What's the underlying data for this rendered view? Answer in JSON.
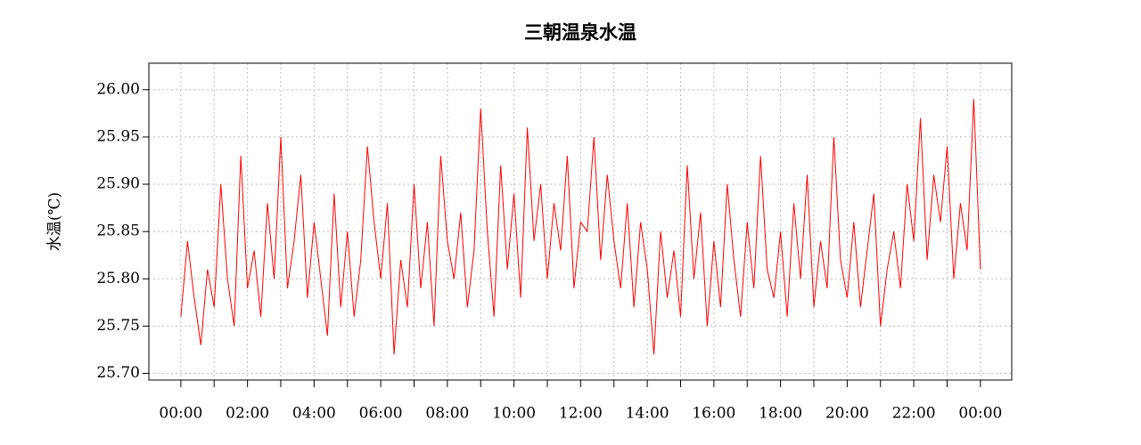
{
  "chart_data": {
    "type": "line",
    "title": "三朝温泉水温",
    "y_label": "水温(℃)",
    "x": [
      0,
      0.2,
      0.4,
      0.6,
      0.8,
      1,
      1.2,
      1.4,
      1.6,
      1.8,
      2,
      2.2,
      2.4,
      2.6,
      2.8,
      3,
      3.2,
      3.4,
      3.6,
      3.8,
      4,
      4.2,
      4.4,
      4.6,
      4.8,
      5,
      5.2,
      5.4,
      5.6,
      5.8,
      6,
      6.2,
      6.4,
      6.6,
      6.8,
      7,
      7.2,
      7.4,
      7.6,
      7.8,
      8,
      8.2,
      8.4,
      8.6,
      8.8,
      9,
      9.2,
      9.4,
      9.6,
      9.8,
      10,
      10.2,
      10.4,
      10.6,
      10.8,
      11,
      11.2,
      11.4,
      11.6,
      11.8,
      12,
      12.2,
      12.4,
      12.6,
      12.8,
      13,
      13.2,
      13.4,
      13.6,
      13.8,
      14,
      14.2,
      14.4,
      14.6,
      14.8,
      15,
      15.2,
      15.4,
      15.6,
      15.8,
      16,
      16.2,
      16.4,
      16.6,
      16.8,
      17,
      17.2,
      17.4,
      17.6,
      17.8,
      18,
      18.2,
      18.4,
      18.6,
      18.8,
      19,
      19.2,
      19.4,
      19.6,
      19.8,
      20,
      20.2,
      20.4,
      20.6,
      20.8,
      21,
      21.2,
      21.4,
      21.6,
      21.8,
      22,
      22.2,
      22.4,
      22.6,
      22.8,
      23,
      23.2,
      23.4,
      23.6,
      23.8,
      24
    ],
    "series": [
      {
        "name": "水温",
        "color": "#ff0000",
        "values": [
          25.76,
          25.84,
          25.78,
          25.73,
          25.81,
          25.77,
          25.9,
          25.8,
          25.75,
          25.93,
          25.79,
          25.83,
          25.76,
          25.88,
          25.8,
          25.95,
          25.79,
          25.84,
          25.91,
          25.78,
          25.86,
          25.8,
          25.74,
          25.89,
          25.77,
          25.85,
          25.76,
          25.82,
          25.94,
          25.86,
          25.8,
          25.88,
          25.72,
          25.82,
          25.77,
          25.9,
          25.79,
          25.86,
          25.75,
          25.93,
          25.84,
          25.8,
          25.87,
          25.77,
          25.83,
          25.98,
          25.85,
          25.76,
          25.92,
          25.81,
          25.89,
          25.78,
          25.96,
          25.84,
          25.9,
          25.8,
          25.88,
          25.83,
          25.93,
          25.79,
          25.86,
          25.85,
          25.95,
          25.82,
          25.91,
          25.84,
          25.79,
          25.88,
          25.77,
          25.86,
          25.81,
          25.72,
          25.85,
          25.78,
          25.83,
          25.76,
          25.92,
          25.8,
          25.87,
          25.75,
          25.84,
          25.77,
          25.9,
          25.82,
          25.76,
          25.86,
          25.79,
          25.93,
          25.81,
          25.78,
          25.85,
          25.76,
          25.88,
          25.8,
          25.91,
          25.77,
          25.84,
          25.79,
          25.95,
          25.82,
          25.78,
          25.86,
          25.77,
          25.83,
          25.89,
          25.75,
          25.81,
          25.85,
          25.79,
          25.9,
          25.84,
          25.97,
          25.82,
          25.91,
          25.86,
          25.94,
          25.8,
          25.88,
          25.83,
          25.99,
          25.81
        ]
      }
    ],
    "xlim": [
      -0.96,
      24.94
    ],
    "ylim": [
      25.693,
      26.028
    ],
    "xticks": [
      {
        "value": 0,
        "label": "00:00"
      },
      {
        "value": 2,
        "label": "02:00"
      },
      {
        "value": 4,
        "label": "04:00"
      },
      {
        "value": 6,
        "label": "06:00"
      },
      {
        "value": 8,
        "label": "08:00"
      },
      {
        "value": 10,
        "label": "10:00"
      },
      {
        "value": 12,
        "label": "12:00"
      },
      {
        "value": 14,
        "label": "14:00"
      },
      {
        "value": 16,
        "label": "16:00"
      },
      {
        "value": 18,
        "label": "18:00"
      },
      {
        "value": 20,
        "label": "20:00"
      },
      {
        "value": 22,
        "label": "22:00"
      },
      {
        "value": 24,
        "label": "00:00"
      }
    ],
    "xminorticks": [
      1,
      3,
      5,
      7,
      9,
      11,
      13,
      15,
      17,
      19,
      21,
      23
    ],
    "yticks": [
      {
        "value": 25.7,
        "label": "25.70"
      },
      {
        "value": 25.75,
        "label": "25.75"
      },
      {
        "value": 25.8,
        "label": "25.80"
      },
      {
        "value": 25.85,
        "label": "25.85"
      },
      {
        "value": 25.9,
        "label": "25.90"
      },
      {
        "value": 25.95,
        "label": "25.95"
      },
      {
        "value": 26,
        "label": "26.00"
      }
    ],
    "grid": true
  }
}
